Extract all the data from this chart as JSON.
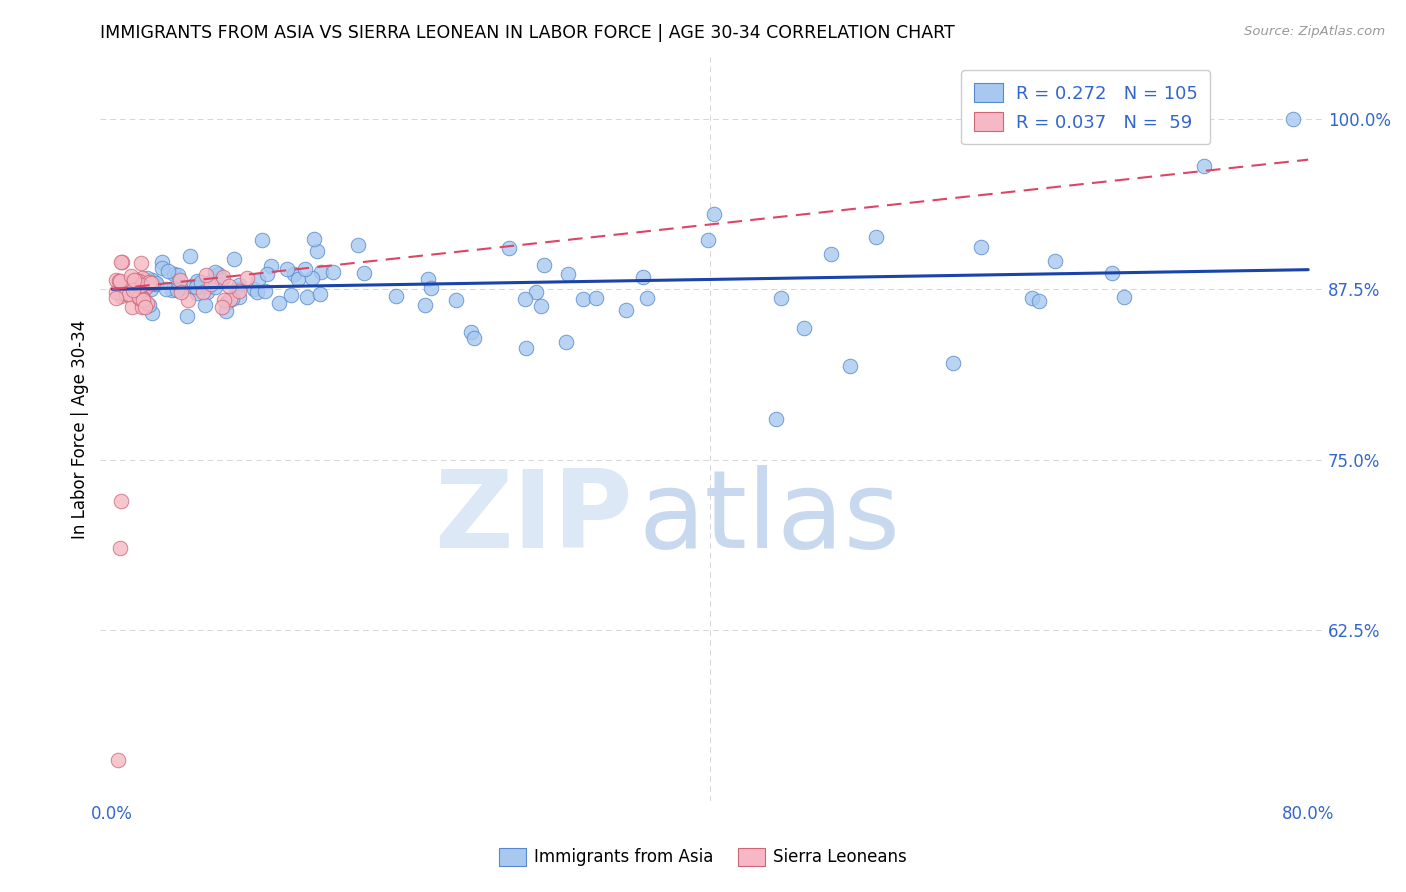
{
  "title": "IMMIGRANTS FROM ASIA VS SIERRA LEONEAN IN LABOR FORCE | AGE 30-34 CORRELATION CHART",
  "source": "Source: ZipAtlas.com",
  "ylabel": "In Labor Force | Age 30-34",
  "ytick_labels": [
    "62.5%",
    "75.0%",
    "87.5%",
    "100.0%"
  ],
  "ytick_values": [
    0.625,
    0.75,
    0.875,
    1.0
  ],
  "xlim": [
    0.0,
    0.8
  ],
  "ylim": [
    0.5,
    1.04
  ],
  "legend_box": {
    "blue_r": "0.272",
    "blue_n": "105",
    "pink_r": "0.037",
    "pink_n": " 59"
  },
  "blue_color": "#a8c8f0",
  "blue_edge": "#5588cc",
  "blue_line_color": "#1a44aa",
  "pink_color": "#f5b8c4",
  "pink_edge": "#cc6677",
  "pink_line_color": "#dd4466",
  "watermark_zip_color": "#dce8f5",
  "watermark_atlas_color": "#c8d8ee",
  "grid_color": "#cccccc",
  "tick_label_color": "#3366cc",
  "legend_text_color": "#3366cc"
}
